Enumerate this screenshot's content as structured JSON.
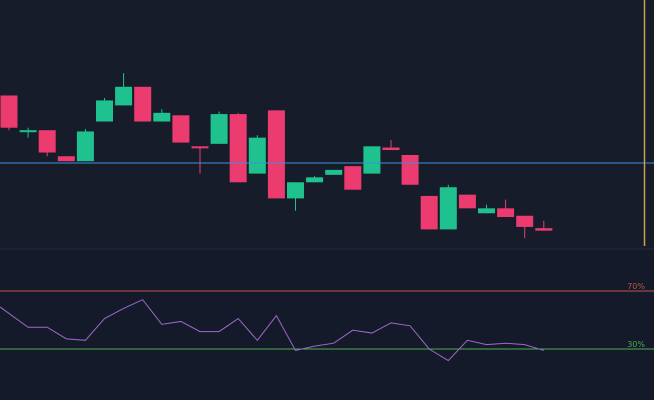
{
  "colors": {
    "background": "#141a29",
    "candle_up": "#1fc28f",
    "candle_down": "#ec3b6f",
    "price_line": "#3d8fe0",
    "cursor_line": "#c9a24a",
    "rsi_line": "#9b69c8",
    "upper_level": "#c1524d",
    "lower_level": "#4cae4f",
    "separator": "#1c2333"
  },
  "chart_data": [
    {
      "type": "candlestick",
      "ylim": [
        0,
        100
      ],
      "grid": false,
      "price_line": 34.5,
      "candles": [
        {
          "o": 61.5,
          "h": 61.5,
          "l": 47.5,
          "c": 48.5
        },
        {
          "o": 47.0,
          "h": 48.5,
          "l": 44.5,
          "c": 47.5
        },
        {
          "o": 47.5,
          "h": 47.5,
          "l": 37.0,
          "c": 38.5
        },
        {
          "o": 37.0,
          "h": 37.0,
          "l": 35.0,
          "c": 35.0
        },
        {
          "o": 35.0,
          "h": 48.0,
          "l": 35.0,
          "c": 47.0
        },
        {
          "o": 51.0,
          "h": 60.5,
          "l": 51.0,
          "c": 59.5
        },
        {
          "o": 57.5,
          "h": 70.5,
          "l": 57.5,
          "c": 65.0
        },
        {
          "o": 65.0,
          "h": 65.0,
          "l": 51.0,
          "c": 51.0
        },
        {
          "o": 51.0,
          "h": 56.0,
          "l": 51.0,
          "c": 54.5
        },
        {
          "o": 53.5,
          "h": 53.5,
          "l": 42.5,
          "c": 42.5
        },
        {
          "o": 41.0,
          "h": 41.0,
          "l": 30.0,
          "c": 40.5
        },
        {
          "o": 42.0,
          "h": 55.0,
          "l": 42.0,
          "c": 54.0
        },
        {
          "o": 54.0,
          "h": 54.5,
          "l": 26.5,
          "c": 26.5
        },
        {
          "o": 30.0,
          "h": 45.5,
          "l": 30.0,
          "c": 44.5
        },
        {
          "o": 55.5,
          "h": 55.5,
          "l": 20.0,
          "c": 20.0
        },
        {
          "o": 20.0,
          "h": 26.5,
          "l": 15.0,
          "c": 26.5
        },
        {
          "o": 26.5,
          "h": 29.0,
          "l": 26.5,
          "c": 28.5
        },
        {
          "o": 29.5,
          "h": 31.5,
          "l": 29.5,
          "c": 31.5
        },
        {
          "o": 33.0,
          "h": 33.0,
          "l": 23.5,
          "c": 23.5
        },
        {
          "o": 30.0,
          "h": 41.0,
          "l": 30.0,
          "c": 41.0
        },
        {
          "o": 40.5,
          "h": 43.5,
          "l": 39.5,
          "c": 39.5
        },
        {
          "o": 37.5,
          "h": 37.5,
          "l": 25.5,
          "c": 25.5
        },
        {
          "o": 21.0,
          "h": 21.0,
          "l": 7.5,
          "c": 7.5
        },
        {
          "o": 7.5,
          "h": 25.5,
          "l": 7.5,
          "c": 24.5
        },
        {
          "o": 21.5,
          "h": 21.5,
          "l": 16.0,
          "c": 16.0
        },
        {
          "o": 14.0,
          "h": 17.5,
          "l": 14.0,
          "c": 16.0
        },
        {
          "o": 16.0,
          "h": 19.5,
          "l": 12.5,
          "c": 12.5
        },
        {
          "o": 13.0,
          "h": 13.0,
          "l": 4.0,
          "c": 8.5
        },
        {
          "o": 8.0,
          "h": 11.0,
          "l": 7.0,
          "c": 7.0
        }
      ]
    },
    {
      "type": "line",
      "ylim": [
        0,
        100
      ],
      "values": [
        59,
        45,
        45,
        37,
        36,
        51,
        58,
        64,
        47,
        49,
        42,
        42,
        51,
        36,
        53,
        29,
        32,
        34,
        43,
        41,
        48,
        46,
        30,
        22,
        36,
        33,
        34,
        33,
        29
      ],
      "levels": [
        {
          "value": 70,
          "label": "70%"
        },
        {
          "value": 30,
          "label": "30%"
        }
      ]
    }
  ]
}
